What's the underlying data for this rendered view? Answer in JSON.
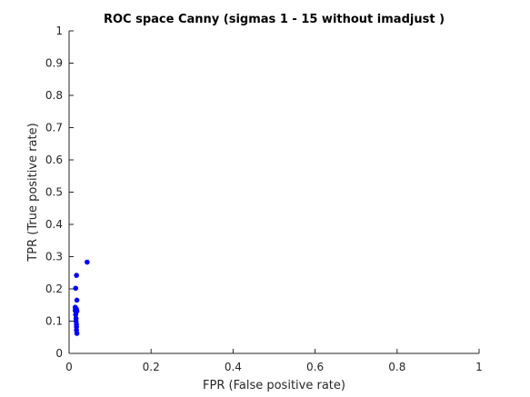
{
  "chart_data": {
    "type": "scatter",
    "title": "ROC space Canny (sigmas 1 - 15  without imadjust )",
    "xlabel": "FPR (False positive rate)",
    "ylabel": "TPR (True positive rate)",
    "xlim": [
      0,
      1
    ],
    "ylim": [
      0,
      1
    ],
    "x_ticks": [
      0,
      0.2,
      0.4,
      0.6,
      0.8,
      1
    ],
    "y_ticks": [
      0,
      0.1,
      0.2,
      0.3,
      0.4,
      0.5,
      0.6,
      0.7,
      0.8,
      0.9,
      1
    ],
    "x_tick_labels": [
      "0",
      "0.2",
      "0.4",
      "0.6",
      "0.8",
      "1"
    ],
    "y_tick_labels": [
      "0",
      "0.1",
      "0.2",
      "0.3",
      "0.4",
      "0.5",
      "0.6",
      "0.7",
      "0.8",
      "0.9",
      "1"
    ],
    "grid": false,
    "marker_color": "#0000ff",
    "points": [
      {
        "x": 0.044,
        "y": 0.283
      },
      {
        "x": 0.018,
        "y": 0.242
      },
      {
        "x": 0.016,
        "y": 0.202
      },
      {
        "x": 0.019,
        "y": 0.165
      },
      {
        "x": 0.015,
        "y": 0.143
      },
      {
        "x": 0.016,
        "y": 0.14
      },
      {
        "x": 0.018,
        "y": 0.137
      },
      {
        "x": 0.015,
        "y": 0.133
      },
      {
        "x": 0.019,
        "y": 0.131
      },
      {
        "x": 0.017,
        "y": 0.128
      },
      {
        "x": 0.016,
        "y": 0.12
      },
      {
        "x": 0.017,
        "y": 0.108
      },
      {
        "x": 0.017,
        "y": 0.1
      },
      {
        "x": 0.018,
        "y": 0.09
      },
      {
        "x": 0.018,
        "y": 0.082
      },
      {
        "x": 0.018,
        "y": 0.072
      },
      {
        "x": 0.019,
        "y": 0.062
      }
    ]
  }
}
